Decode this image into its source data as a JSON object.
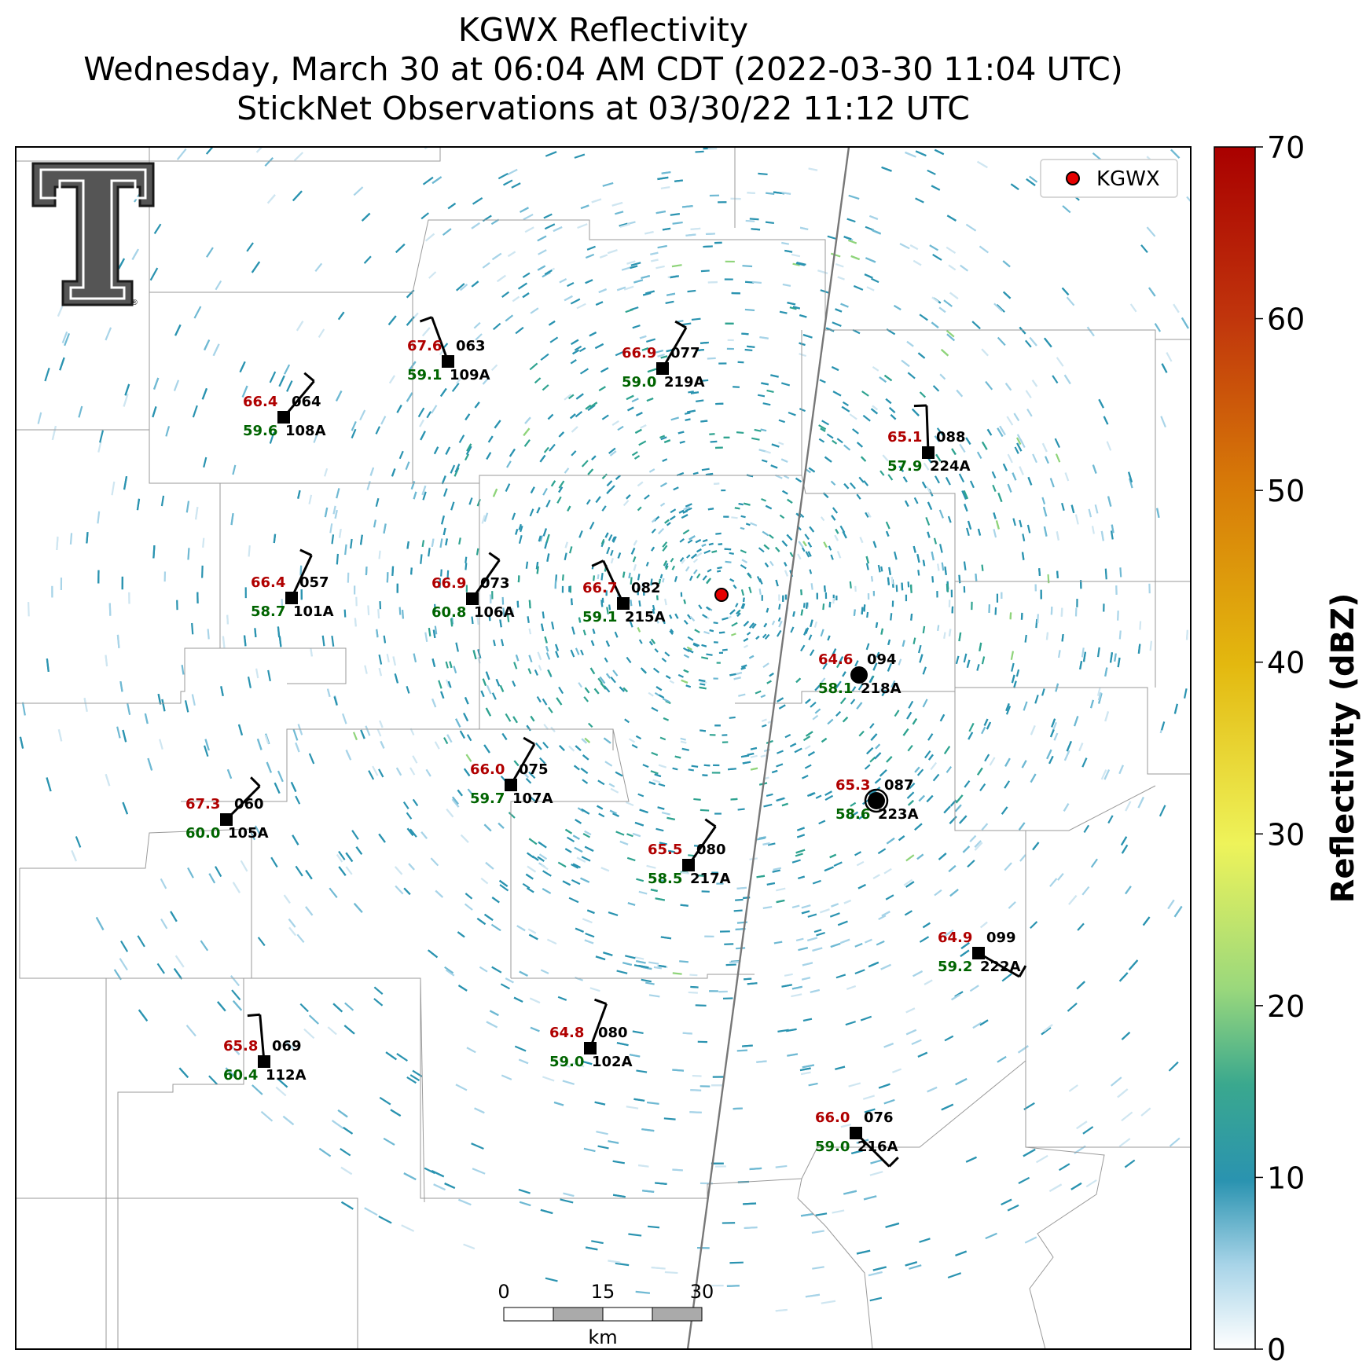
{
  "header": {
    "title_line1": "KGWX Reflectivity",
    "title_line2": "Wednesday, March 30 at 06:04 AM CDT (2022-03-30 11:04 UTC)",
    "title_line3": "StickNet Observations at 03/30/22 11:12 UTC"
  },
  "legend": {
    "radar_label": "KGWX",
    "radar_color": "#e60000"
  },
  "colorbar": {
    "label": "Reflectivity (dBZ)",
    "ticks": [
      "0",
      "10",
      "20",
      "30",
      "40",
      "50",
      "60",
      "70"
    ],
    "colors": [
      "#ffffff",
      "#a8d4e8",
      "#2a93b0",
      "#2fa390",
      "#8fd47a",
      "#eef35a",
      "#e5c21a",
      "#d88a0a",
      "#c43a0a",
      "#b00000"
    ]
  },
  "scalebar": {
    "tick_0": "0",
    "tick_15": "15",
    "tick_30": "30",
    "unit": "km"
  },
  "logo": {
    "text": "T"
  },
  "stations": [
    {
      "id": "109A",
      "temp": "67.6",
      "dew": "59.1",
      "pres": "063"
    },
    {
      "id": "219A",
      "temp": "66.9",
      "dew": "59.0",
      "pres": "077"
    },
    {
      "id": "108A",
      "temp": "66.4",
      "dew": "59.6",
      "pres": "064"
    },
    {
      "id": "224A",
      "temp": "65.1",
      "dew": "57.9",
      "pres": "088"
    },
    {
      "id": "101A",
      "temp": "66.4",
      "dew": "58.7",
      "pres": "057"
    },
    {
      "id": "106A",
      "temp": "66.9",
      "dew": "60.8",
      "pres": "073"
    },
    {
      "id": "215A",
      "temp": "66.7",
      "dew": "59.1",
      "pres": "082"
    },
    {
      "id": "218A",
      "temp": "64.6",
      "dew": "58.1",
      "pres": "094"
    },
    {
      "id": "223A",
      "temp": "65.3",
      "dew": "58.6",
      "pres": "087"
    },
    {
      "id": "107A",
      "temp": "66.0",
      "dew": "59.7",
      "pres": "075"
    },
    {
      "id": "105A",
      "temp": "67.3",
      "dew": "60.0",
      "pres": "060"
    },
    {
      "id": "217A",
      "temp": "65.5",
      "dew": "58.5",
      "pres": "080"
    },
    {
      "id": "222A",
      "temp": "64.9",
      "dew": "59.2",
      "pres": "099"
    },
    {
      "id": "112A",
      "temp": "65.8",
      "dew": "60.4",
      "pres": "069"
    },
    {
      "id": "102A",
      "temp": "64.8",
      "dew": "59.0",
      "pres": "080"
    },
    {
      "id": "216A",
      "temp": "66.0",
      "dew": "59.0",
      "pres": "076"
    }
  ]
}
